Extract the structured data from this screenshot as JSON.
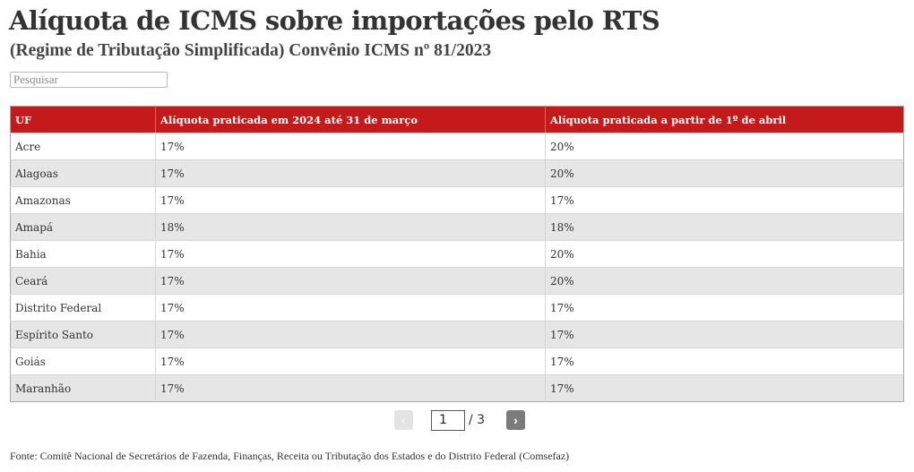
{
  "header": {
    "title": "Alíquota de ICMS sobre importações pelo RTS",
    "subtitle": "(Regime de Tributação Simplificada) Convênio ICMS nº 81/2023"
  },
  "search": {
    "placeholder": "Pesquisar",
    "value": ""
  },
  "table": {
    "columns": [
      "UF",
      "Alíquota praticada em 2024 até 31 de março",
      "Alíquota praticada a partir de 1º de abril"
    ],
    "rows": [
      [
        "Acre",
        "17%",
        "20%"
      ],
      [
        "Alagoas",
        "17%",
        "20%"
      ],
      [
        "Amazonas",
        "17%",
        "17%"
      ],
      [
        "Amapá",
        "18%",
        "18%"
      ],
      [
        "Bahia",
        "17%",
        "20%"
      ],
      [
        "Ceará",
        "17%",
        "20%"
      ],
      [
        "Distrito Federal",
        "17%",
        "17%"
      ],
      [
        "Espírito Santo",
        "17%",
        "17%"
      ],
      [
        "Goiás",
        "17%",
        "17%"
      ],
      [
        "Maranhão",
        "17%",
        "17%"
      ]
    ]
  },
  "pagination": {
    "prev_label": "‹",
    "next_label": "›",
    "current_page": "1",
    "total_label": "/ 3"
  },
  "footer": {
    "source": "Fonte: Comitê Nacional de Secretários de Fazenda, Finanças, Receita ou Tributação dos Estados e do Distrito Federal (Comsefaz)"
  },
  "colors": {
    "header_red": "#c41a1b",
    "row_stripe": "#e6e6e6"
  }
}
